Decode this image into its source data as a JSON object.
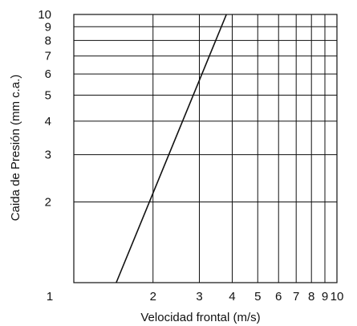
{
  "chart_data": {
    "type": "line",
    "title": "",
    "xlabel": "Velocidad frontal (m/s)",
    "ylabel": "Caida de Presión (mm c.a.)",
    "x_scale": "log",
    "y_scale": "log",
    "xlim": [
      1,
      10
    ],
    "ylim": [
      1,
      10
    ],
    "grid": true,
    "x_ticks": [
      1,
      2,
      3,
      4,
      5,
      6,
      7,
      8,
      9,
      10
    ],
    "x_tick_labels": [
      "1",
      "2",
      "3",
      "4",
      "5",
      "6",
      "7",
      "8",
      "9",
      "10"
    ],
    "y_ticks": [
      2,
      3,
      4,
      5,
      6,
      7,
      8,
      9,
      10
    ],
    "y_tick_labels": [
      "2",
      "3",
      "4",
      "5",
      "6",
      "7",
      "8",
      "9",
      "10"
    ],
    "series": [
      {
        "x": [
          1.45,
          3.8
        ],
        "y": [
          1.0,
          10.0
        ]
      }
    ],
    "colors": {
      "line": "#111111",
      "grid": "#111111",
      "text": "#111111"
    }
  }
}
